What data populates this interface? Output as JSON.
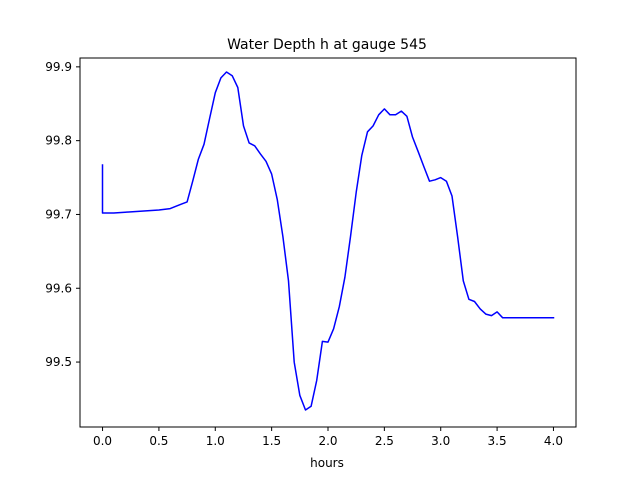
{
  "chart_data": {
    "type": "line",
    "title": "Water Depth h at gauge 545",
    "xlabel": "hours",
    "ylabel": "",
    "xlim": [
      -0.2,
      4.2
    ],
    "ylim": [
      99.412,
      99.912
    ],
    "xticks": [
      0.0,
      0.5,
      1.0,
      1.5,
      2.0,
      2.5,
      3.0,
      3.5,
      4.0
    ],
    "xtick_labels": [
      "0.0",
      "0.5",
      "1.0",
      "1.5",
      "2.0",
      "2.5",
      "3.0",
      "3.5",
      "4.0"
    ],
    "yticks": [
      99.5,
      99.6,
      99.7,
      99.8,
      99.9
    ],
    "ytick_labels": [
      "99.5",
      "99.6",
      "99.7",
      "99.8",
      "99.9"
    ],
    "grid": false,
    "series": [
      {
        "color": "#0000ff",
        "x": [
          0.0,
          0.0,
          0.1,
          0.2,
          0.3,
          0.4,
          0.5,
          0.6,
          0.65,
          0.7,
          0.75,
          0.8,
          0.85,
          0.9,
          0.95,
          1.0,
          1.05,
          1.1,
          1.15,
          1.2,
          1.25,
          1.3,
          1.35,
          1.4,
          1.45,
          1.5,
          1.55,
          1.6,
          1.65,
          1.7,
          1.75,
          1.8,
          1.85,
          1.9,
          1.95,
          2.0,
          2.05,
          2.1,
          2.15,
          2.2,
          2.25,
          2.3,
          2.35,
          2.4,
          2.45,
          2.5,
          2.55,
          2.6,
          2.65,
          2.7,
          2.75,
          2.8,
          2.85,
          2.9,
          2.95,
          3.0,
          3.05,
          3.1,
          3.15,
          3.2,
          3.25,
          3.3,
          3.35,
          3.4,
          3.45,
          3.5,
          3.55,
          3.6,
          3.65,
          3.7,
          3.75,
          3.8,
          3.85,
          3.9,
          3.95,
          4.0
        ],
        "y": [
          99.767,
          99.702,
          99.702,
          99.703,
          99.704,
          99.705,
          99.706,
          99.708,
          99.711,
          99.714,
          99.717,
          99.745,
          99.775,
          99.795,
          99.83,
          99.865,
          99.885,
          99.893,
          99.888,
          99.872,
          99.82,
          99.797,
          99.793,
          99.782,
          99.772,
          99.755,
          99.72,
          99.67,
          99.61,
          99.5,
          99.455,
          99.435,
          99.44,
          99.475,
          99.528,
          99.527,
          99.545,
          99.575,
          99.615,
          99.67,
          99.73,
          99.78,
          99.812,
          99.82,
          99.835,
          99.843,
          99.835,
          99.835,
          99.84,
          99.833,
          99.805,
          99.785,
          99.765,
          99.745,
          99.747,
          99.75,
          99.745,
          99.725,
          99.67,
          99.61,
          99.585,
          99.582,
          99.572,
          99.565,
          99.563,
          99.568,
          99.56,
          99.56,
          99.56,
          99.56,
          99.56,
          99.56,
          99.56,
          99.56,
          99.56,
          99.56
        ]
      }
    ]
  }
}
